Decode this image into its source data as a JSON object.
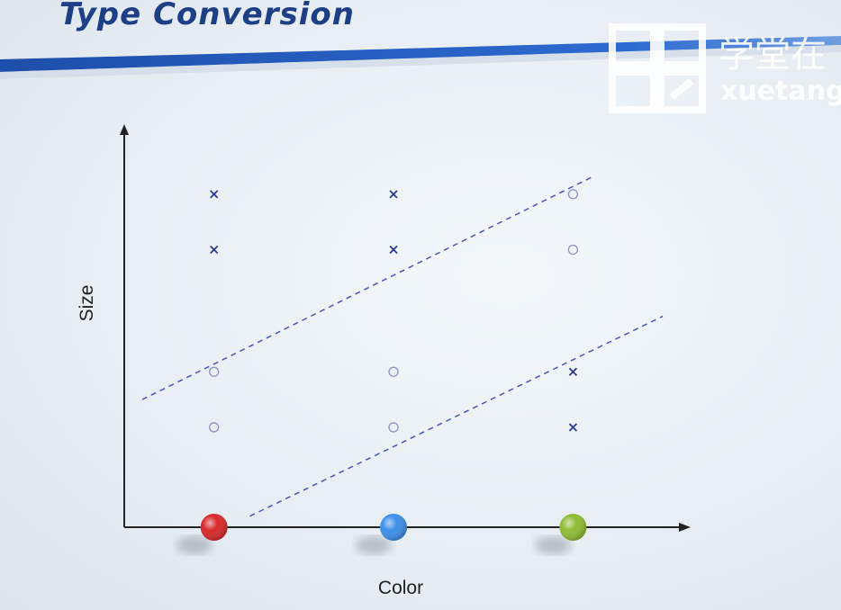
{
  "slide": {
    "title": "Type Conversion",
    "logo_text_cn": "学堂在",
    "logo_text_en": "xuetang"
  },
  "chart_data": {
    "type": "scatter",
    "title": "Type Conversion",
    "xlabel": "Color",
    "ylabel": "Size",
    "categories": [
      "red",
      "blue",
      "green"
    ],
    "category_colors": [
      "#d8292b",
      "#3d8ee8",
      "#8fbc35"
    ],
    "grid": false,
    "series": [
      {
        "marker": "x",
        "points": [
          {
            "x": "red",
            "y": 5.2
          },
          {
            "x": "red",
            "y": 4.2
          },
          {
            "x": "blue",
            "y": 5.2
          },
          {
            "x": "blue",
            "y": 4.2
          },
          {
            "x": "green",
            "y": 2.0
          },
          {
            "x": "green",
            "y": 1.0
          }
        ]
      },
      {
        "marker": "o",
        "points": [
          {
            "x": "red",
            "y": 2.0
          },
          {
            "x": "red",
            "y": 1.0
          },
          {
            "x": "blue",
            "y": 2.0
          },
          {
            "x": "blue",
            "y": 1.0
          },
          {
            "x": "green",
            "y": 5.2
          },
          {
            "x": "green",
            "y": 4.2
          }
        ]
      }
    ],
    "boundary_lines": [
      {
        "style": "dashed",
        "from": {
          "x": -0.4,
          "y": 1.5
        },
        "to": {
          "x": 2.1,
          "y": 5.5
        }
      },
      {
        "style": "dashed",
        "from": {
          "x": 0.2,
          "y": -0.6
        },
        "to": {
          "x": 2.5,
          "y": 3.0
        }
      }
    ],
    "xlim": [
      -0.5,
      2.6
    ],
    "ylim": [
      -0.8,
      6.3
    ]
  },
  "style": {
    "title_color": "#1e3f86",
    "marker_color": "#2b3a8c",
    "axis_color": "#222222",
    "dash_color": "#4a55b8"
  }
}
